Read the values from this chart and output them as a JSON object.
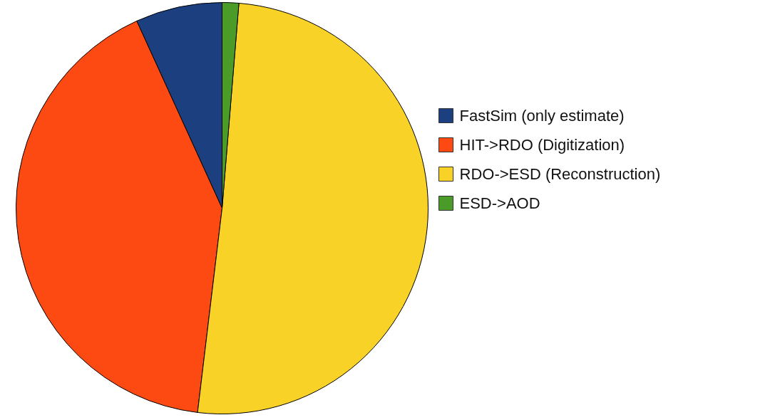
{
  "chart_data": {
    "type": "pie",
    "categories": [
      "FastSim (only estimate)",
      "HIT->RDO (Digitization)",
      "RDO->ESD (Reconstruction)",
      "ESD->AOD"
    ],
    "values": [
      6.8,
      41.3,
      50.6,
      1.3
    ],
    "colors": [
      "#1c3f80",
      "#fc4a12",
      "#f8d226",
      "#4b9b29"
    ],
    "legend": "right"
  }
}
